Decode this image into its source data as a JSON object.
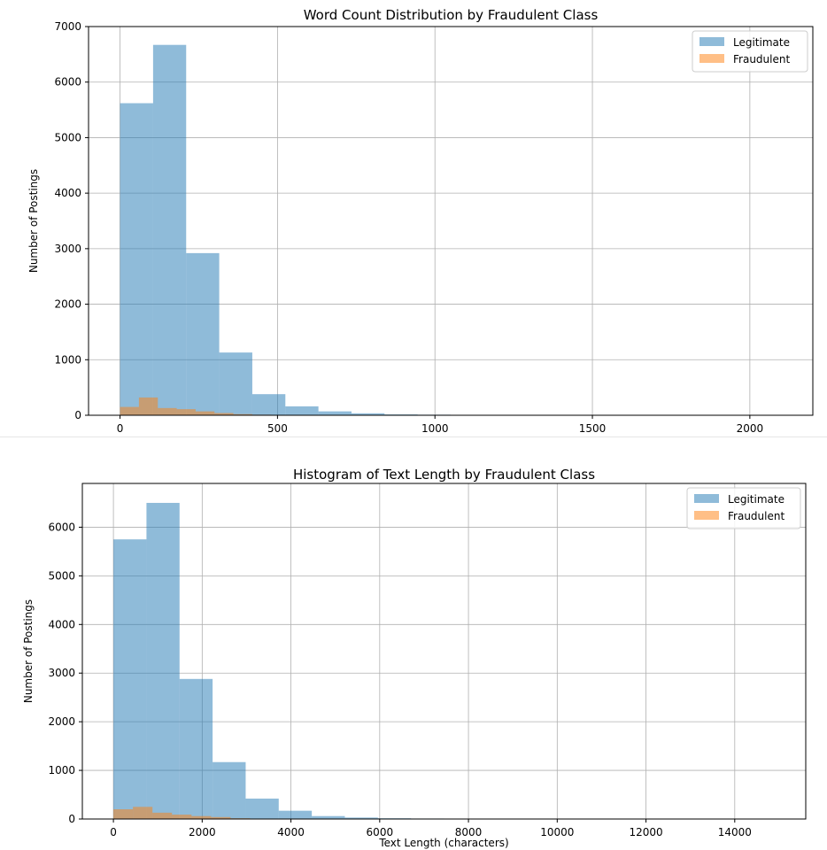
{
  "chart_data": [
    {
      "type": "bar",
      "title": "Word Count Distribution by Fraudulent Class",
      "xlabel": "",
      "ylabel": "Number of Postings",
      "xlim": [
        -100,
        2200
      ],
      "ylim": [
        0,
        7000
      ],
      "xticks": [
        0,
        500,
        1000,
        1500,
        2000
      ],
      "yticks": [
        0,
        1000,
        2000,
        3000,
        4000,
        5000,
        6000,
        7000
      ],
      "grid": true,
      "legend": "top-right",
      "series": [
        {
          "name": "Legitimate",
          "color": "#1f77b4",
          "alpha": 0.5,
          "bin_width": 105,
          "bin_starts": [
            0,
            105,
            210,
            315,
            420,
            525,
            630,
            735,
            840,
            945,
            1050
          ],
          "values": [
            5620,
            6670,
            2920,
            1130,
            380,
            160,
            70,
            35,
            15,
            10,
            5
          ]
        },
        {
          "name": "Fraudulent",
          "color": "#ff7f0e",
          "alpha": 0.5,
          "bin_width": 60,
          "bin_starts": [
            0,
            60,
            120,
            180,
            240,
            300,
            360,
            420
          ],
          "values": [
            150,
            320,
            130,
            110,
            70,
            40,
            20,
            10
          ]
        }
      ]
    },
    {
      "type": "bar",
      "title": "Histogram of Text Length by Fraudulent Class",
      "xlabel": "Text Length (characters)",
      "ylabel": "Number of Postings",
      "xlim": [
        -700,
        15600
      ],
      "ylim": [
        0,
        6900
      ],
      "xticks": [
        0,
        2000,
        4000,
        6000,
        8000,
        10000,
        12000,
        14000
      ],
      "yticks": [
        0,
        1000,
        2000,
        3000,
        4000,
        5000,
        6000
      ],
      "grid": true,
      "legend": "top-right",
      "series": [
        {
          "name": "Legitimate",
          "color": "#1f77b4",
          "alpha": 0.5,
          "bin_width": 745,
          "bin_starts": [
            0,
            745,
            1490,
            2235,
            2980,
            3725,
            4470,
            5215,
            5960,
            6705,
            7450
          ],
          "values": [
            5750,
            6500,
            2880,
            1170,
            420,
            170,
            60,
            30,
            15,
            10,
            5
          ]
        },
        {
          "name": "Fraudulent",
          "color": "#ff7f0e",
          "alpha": 0.5,
          "bin_width": 440,
          "bin_starts": [
            0,
            440,
            880,
            1320,
            1760,
            2200,
            2640
          ],
          "values": [
            200,
            250,
            130,
            90,
            60,
            40,
            15
          ]
        }
      ]
    }
  ]
}
